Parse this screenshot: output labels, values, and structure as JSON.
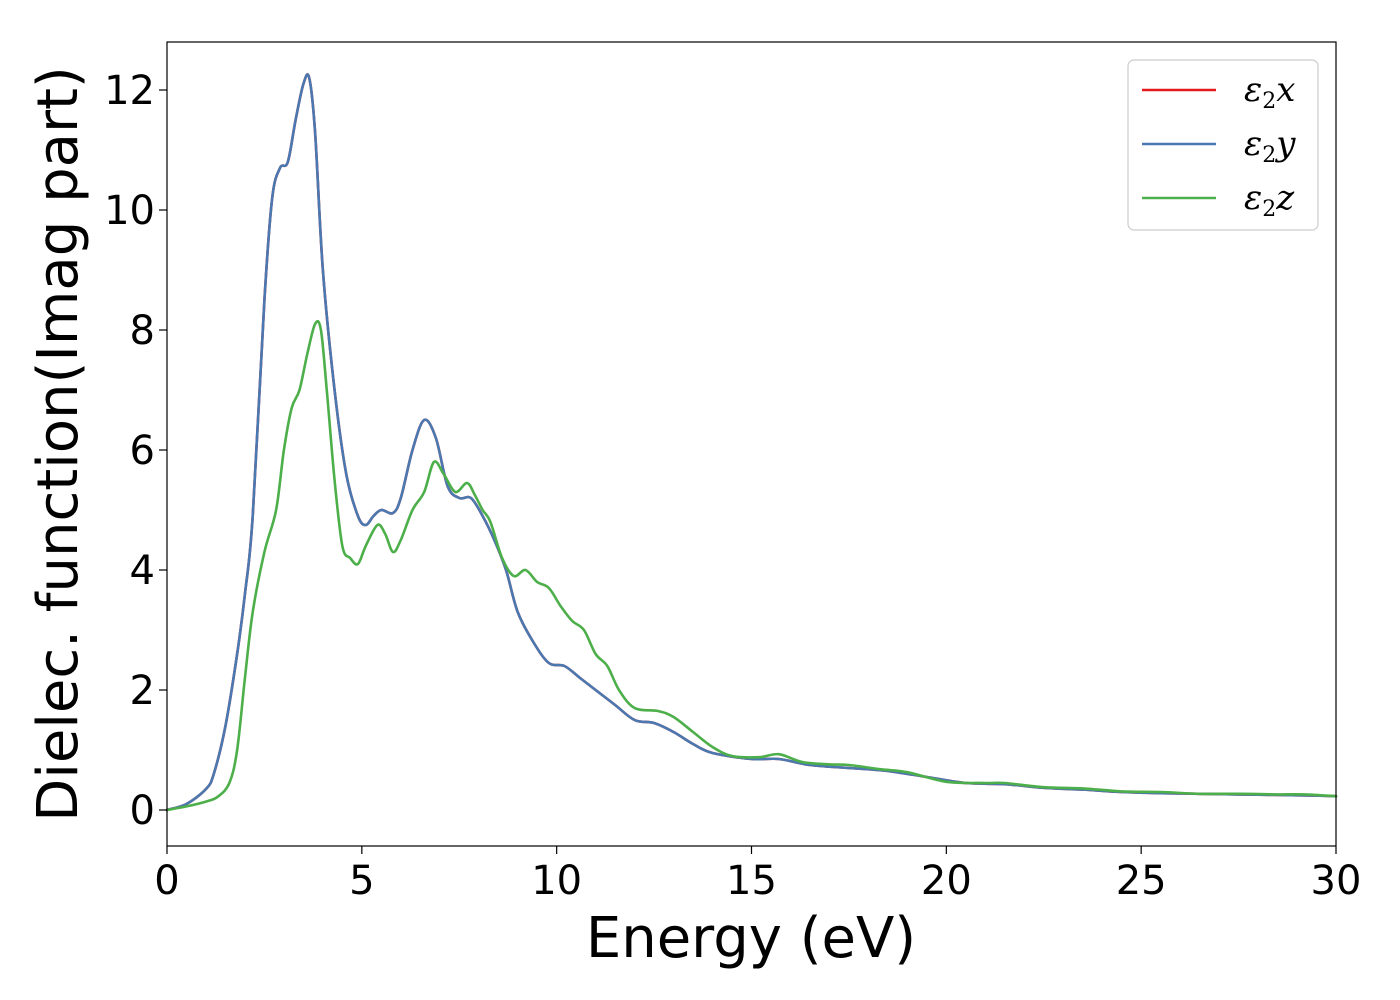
{
  "chart_data": {
    "type": "line",
    "title": "",
    "xlabel": "Energy (eV)",
    "ylabel": "Dielec. function(Imag part)",
    "xlim": [
      0,
      30
    ],
    "ylim": [
      -0.6,
      12.8
    ],
    "xticks": [
      0,
      5,
      10,
      15,
      20,
      25,
      30
    ],
    "yticks": [
      0,
      2,
      4,
      6,
      8,
      10,
      12
    ],
    "grid": false,
    "legend_position": "top-right",
    "series": [
      {
        "name": "ε2x",
        "symbol": "ε",
        "subscript": "2",
        "component": "x",
        "color": "#e41a1c",
        "x": [
          0,
          0.5,
          1.0,
          1.2,
          1.5,
          1.8,
          2.0,
          2.2,
          2.5,
          2.7,
          2.9,
          3.1,
          3.3,
          3.5,
          3.65,
          3.8,
          4.0,
          4.3,
          4.6,
          4.9,
          5.1,
          5.3,
          5.5,
          5.8,
          6.0,
          6.3,
          6.6,
          6.9,
          7.2,
          7.5,
          7.8,
          8.1,
          8.4,
          8.7,
          9.0,
          9.4,
          9.8,
          10.2,
          10.6,
          11.0,
          11.5,
          12.0,
          12.5,
          13.0,
          13.5,
          14.0,
          15.0,
          15.7,
          16.5,
          17.5,
          18.5,
          19.5,
          20.5,
          21.5,
          22.5,
          23.5,
          24.5,
          25.5,
          26.5,
          27.5,
          28.5,
          29.5,
          30
        ],
        "values": [
          0.0,
          0.1,
          0.35,
          0.6,
          1.4,
          2.6,
          3.6,
          4.9,
          8.5,
          10.2,
          10.7,
          10.8,
          11.5,
          12.1,
          12.2,
          11.3,
          9.0,
          7.0,
          5.6,
          4.9,
          4.75,
          4.9,
          5.0,
          4.95,
          5.2,
          6.0,
          6.5,
          6.2,
          5.4,
          5.2,
          5.2,
          4.9,
          4.5,
          4.0,
          3.3,
          2.8,
          2.45,
          2.4,
          2.2,
          2.0,
          1.75,
          1.5,
          1.45,
          1.3,
          1.1,
          0.95,
          0.85,
          0.85,
          0.75,
          0.7,
          0.65,
          0.55,
          0.45,
          0.43,
          0.37,
          0.34,
          0.3,
          0.28,
          0.27,
          0.26,
          0.25,
          0.24,
          0.23
        ]
      },
      {
        "name": "ε2y",
        "symbol": "ε",
        "subscript": "2",
        "component": "y",
        "color": "#4a78b0",
        "x": [
          0,
          0.5,
          1.0,
          1.2,
          1.5,
          1.8,
          2.0,
          2.2,
          2.5,
          2.7,
          2.9,
          3.1,
          3.3,
          3.5,
          3.65,
          3.8,
          4.0,
          4.3,
          4.6,
          4.9,
          5.1,
          5.3,
          5.5,
          5.8,
          6.0,
          6.3,
          6.6,
          6.9,
          7.2,
          7.5,
          7.8,
          8.1,
          8.4,
          8.7,
          9.0,
          9.4,
          9.8,
          10.2,
          10.6,
          11.0,
          11.5,
          12.0,
          12.5,
          13.0,
          13.5,
          14.0,
          15.0,
          15.7,
          16.5,
          17.5,
          18.5,
          19.5,
          20.5,
          21.5,
          22.5,
          23.5,
          24.5,
          25.5,
          26.5,
          27.5,
          28.5,
          29.5,
          30
        ],
        "values": [
          0.0,
          0.1,
          0.35,
          0.6,
          1.4,
          2.6,
          3.6,
          4.9,
          8.5,
          10.2,
          10.7,
          10.8,
          11.5,
          12.1,
          12.2,
          11.3,
          9.0,
          7.0,
          5.6,
          4.9,
          4.75,
          4.9,
          5.0,
          4.95,
          5.2,
          6.0,
          6.5,
          6.2,
          5.4,
          5.2,
          5.2,
          4.9,
          4.5,
          4.0,
          3.3,
          2.8,
          2.45,
          2.4,
          2.2,
          2.0,
          1.75,
          1.5,
          1.45,
          1.3,
          1.1,
          0.95,
          0.85,
          0.85,
          0.75,
          0.7,
          0.65,
          0.55,
          0.45,
          0.43,
          0.37,
          0.34,
          0.3,
          0.28,
          0.27,
          0.26,
          0.25,
          0.24,
          0.23
        ]
      },
      {
        "name": "ε2z",
        "symbol": "ε",
        "subscript": "2",
        "component": "z",
        "color": "#4daf4a",
        "x": [
          0,
          0.5,
          1.0,
          1.3,
          1.6,
          1.8,
          2.0,
          2.2,
          2.5,
          2.8,
          3.0,
          3.2,
          3.4,
          3.6,
          3.8,
          3.95,
          4.1,
          4.3,
          4.5,
          4.7,
          4.9,
          5.1,
          5.4,
          5.6,
          5.8,
          6.0,
          6.3,
          6.6,
          6.85,
          7.1,
          7.4,
          7.7,
          7.9,
          8.1,
          8.3,
          8.6,
          8.9,
          9.2,
          9.5,
          9.8,
          10.1,
          10.4,
          10.7,
          11.0,
          11.3,
          11.6,
          12.0,
          12.6,
          13.0,
          13.5,
          14.0,
          14.5,
          15.2,
          15.7,
          16.3,
          17.0,
          17.5,
          18.3,
          19.0,
          20.0,
          21.0,
          21.5,
          22.5,
          23.5,
          24.5,
          25.5,
          26.5,
          27.5,
          28.5,
          29.2,
          30
        ],
        "values": [
          0.0,
          0.06,
          0.14,
          0.22,
          0.45,
          1.0,
          2.2,
          3.3,
          4.3,
          5.0,
          6.0,
          6.7,
          7.0,
          7.6,
          8.1,
          8.0,
          7.0,
          5.5,
          4.4,
          4.2,
          4.1,
          4.4,
          4.75,
          4.6,
          4.3,
          4.5,
          5.0,
          5.3,
          5.8,
          5.6,
          5.3,
          5.45,
          5.25,
          5.0,
          4.8,
          4.2,
          3.9,
          4.0,
          3.8,
          3.7,
          3.4,
          3.15,
          3.0,
          2.6,
          2.4,
          2.0,
          1.7,
          1.65,
          1.55,
          1.3,
          1.05,
          0.9,
          0.88,
          0.93,
          0.8,
          0.76,
          0.75,
          0.68,
          0.63,
          0.47,
          0.45,
          0.45,
          0.38,
          0.36,
          0.31,
          0.3,
          0.27,
          0.27,
          0.26,
          0.26,
          0.23
        ]
      }
    ]
  }
}
